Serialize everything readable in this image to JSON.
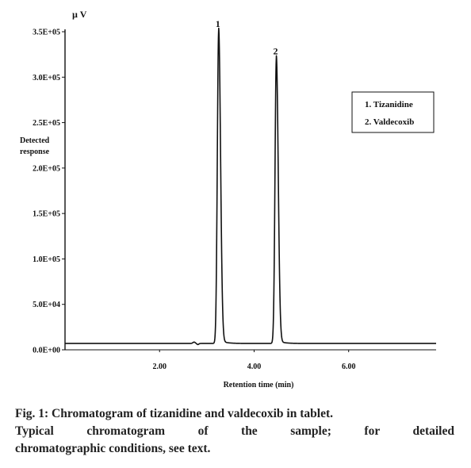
{
  "chart_data": {
    "type": "line",
    "unit_label": "µ V",
    "ylabel_line1": "Detected",
    "ylabel_line2": "response",
    "xlabel": "Retention time (min)",
    "x_range": [
      0.0,
      7.85
    ],
    "y_range": [
      0,
      350000
    ],
    "x_ticks": [
      {
        "value": 2.0,
        "label": "2.00"
      },
      {
        "value": 4.0,
        "label": "4.00"
      },
      {
        "value": 6.0,
        "label": "6.00"
      }
    ],
    "y_ticks": [
      {
        "value": 0,
        "label": "0.0E+00"
      },
      {
        "value": 50000,
        "label": "5.0E+04"
      },
      {
        "value": 100000,
        "label": "1.0E+05"
      },
      {
        "value": 150000,
        "label": "1.5E+05"
      },
      {
        "value": 200000,
        "label": "2.0E+05"
      },
      {
        "value": 250000,
        "label": "2.5E+05"
      },
      {
        "value": 300000,
        "label": "3.0E+05"
      },
      {
        "value": 350000,
        "label": "3.5E+05"
      }
    ],
    "baseline": 7000,
    "peaks": [
      {
        "label": "1",
        "name": "Tizanidine",
        "retention_time": 3.25,
        "height": 350000
      },
      {
        "label": "2",
        "name": "Valdecoxib",
        "retention_time": 4.47,
        "height": 320000
      }
    ],
    "minor_peak": {
      "retention_time": 2.73,
      "height": 8500
    },
    "legend_entries": [
      "1. Tizanidine",
      "2. Valdecoxib"
    ]
  },
  "caption": {
    "line1": "Fig. 1: Chromatogram of tizanidine and valdecoxib in tablet.",
    "line2": "Typical chromatogram of the sample; for detailed",
    "line3": "chromatographic conditions, see text."
  }
}
